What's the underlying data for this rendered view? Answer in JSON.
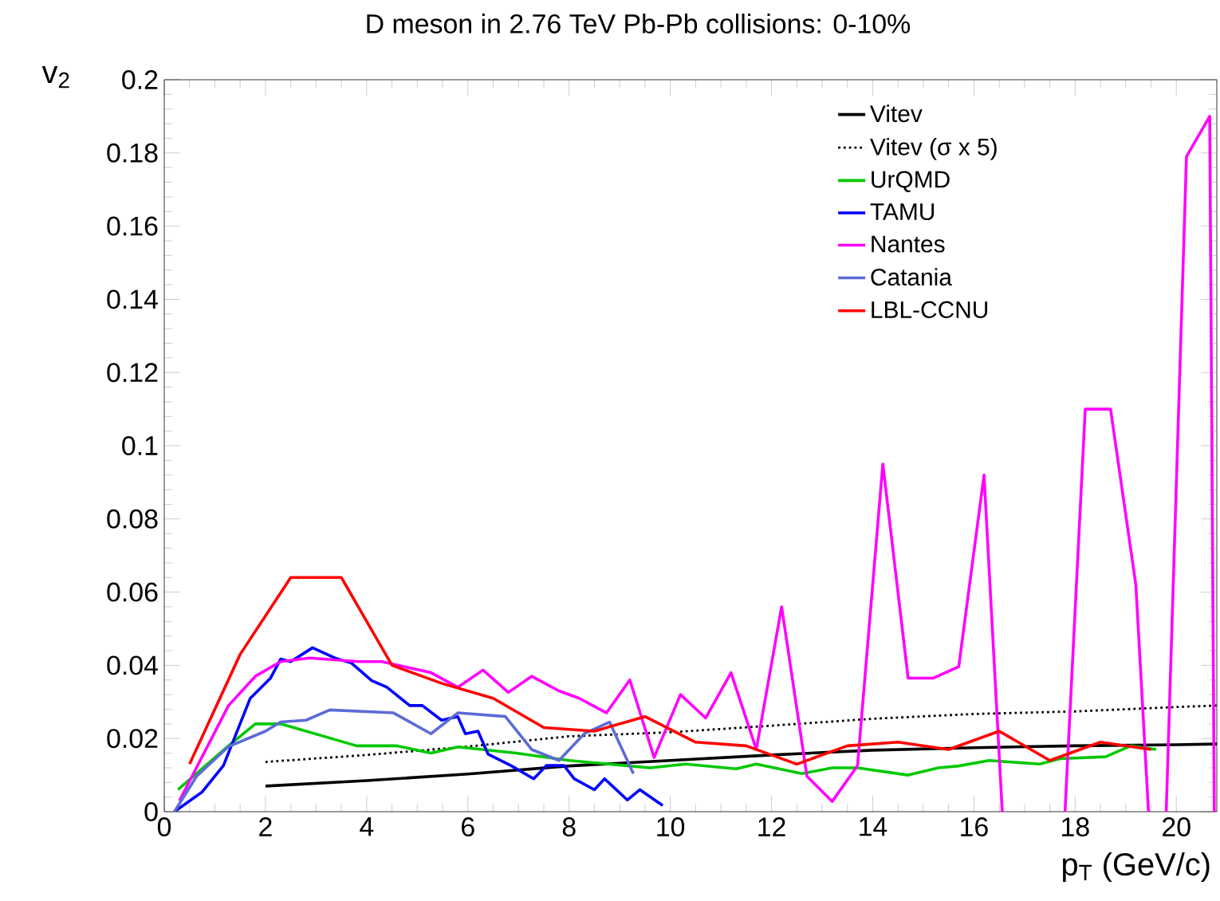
{
  "chart_data": {
    "type": "line",
    "title": "D meson in 2.76 TeV Pb-Pb collisions: 0-10%",
    "xlabel": "p$_{T}$ (GeV/c)",
    "ylabel": "v$_{2}$",
    "xlim": [
      0,
      20.8
    ],
    "ylim": [
      0,
      0.2
    ],
    "xticks": [
      0,
      2,
      4,
      6,
      8,
      10,
      12,
      14,
      16,
      18,
      20
    ],
    "yticks": [
      0,
      0.02,
      0.04,
      0.06,
      0.08,
      0.1,
      0.12,
      0.14,
      0.16,
      0.18,
      0.2
    ],
    "grid": false,
    "legend": "top right",
    "marker": "none",
    "series": [
      {
        "name": "Vitev",
        "color": "#000000",
        "line_style": "solid",
        "x": [
          2,
          4,
          6,
          8,
          10,
          12,
          14,
          16,
          18,
          20,
          20.8
        ],
        "values": [
          0.007,
          0.0085,
          0.0103,
          0.0125,
          0.014,
          0.0155,
          0.0168,
          0.0175,
          0.018,
          0.0183,
          0.0185
        ]
      },
      {
        "name": "Vitev (σ x 5)",
        "color": "#000000",
        "line_style": "dotted",
        "x": [
          2,
          4,
          6,
          8,
          10,
          12,
          14,
          16,
          18,
          20,
          20.8
        ],
        "values": [
          0.0136,
          0.0155,
          0.0178,
          0.0206,
          0.0217,
          0.0235,
          0.0254,
          0.0267,
          0.0274,
          0.0286,
          0.029
        ]
      },
      {
        "name": "UrQMD",
        "color": "#00c800",
        "line_style": "solid",
        "x": [
          0.27,
          1.27,
          1.8,
          2.3,
          3.8,
          4.6,
          5.27,
          5.8,
          6.95,
          8,
          9.6,
          10.3,
          11.3,
          11.7,
          12.6,
          13.2,
          13.7,
          14.7,
          15.3,
          15.7,
          16.3,
          17.3,
          17.7,
          18.6,
          19.1,
          19.6
        ],
        "values": [
          0.006,
          0.018,
          0.024,
          0.024,
          0.018,
          0.018,
          0.016,
          0.0177,
          0.016,
          0.014,
          0.012,
          0.013,
          0.0117,
          0.013,
          0.0104,
          0.012,
          0.012,
          0.01,
          0.012,
          0.0125,
          0.014,
          0.013,
          0.0145,
          0.015,
          0.018,
          0.017
        ]
      },
      {
        "name": "TAMU",
        "color": "#0000ff",
        "line_style": "solid",
        "x": [
          0.2,
          0.75,
          1.17,
          1.7,
          2.1,
          2.3,
          2.5,
          2.93,
          3.37,
          3.7,
          4.1,
          4.4,
          4.85,
          5.1,
          5.48,
          5.8,
          5.95,
          6.2,
          6.4,
          6.85,
          7.3,
          7.55,
          7.9,
          8.1,
          8.5,
          8.7,
          9.15,
          9.4,
          9.85
        ],
        "values": [
          0,
          0.0054,
          0.0126,
          0.031,
          0.0365,
          0.0417,
          0.041,
          0.0448,
          0.042,
          0.0406,
          0.0358,
          0.034,
          0.029,
          0.029,
          0.025,
          0.026,
          0.0213,
          0.022,
          0.0157,
          0.0126,
          0.009,
          0.0126,
          0.0126,
          0.009,
          0.006,
          0.009,
          0.0032,
          0.006,
          0.0017
        ]
      },
      {
        "name": "Nantes",
        "color": "#ff00ff",
        "line_style": "solid",
        "x": [
          0.3,
          1.27,
          1.8,
          2.3,
          2.87,
          3.85,
          4.3,
          5.27,
          5.8,
          6.3,
          6.8,
          7.26,
          7.8,
          8.2,
          8.74,
          9.2,
          9.68,
          10.2,
          10.7,
          11.2,
          11.7,
          12.2,
          12.7,
          13.2,
          13.7,
          14.2,
          14.7,
          15.2,
          15.7,
          16.2,
          16.56,
          17.2,
          17.8,
          18.2,
          18.7,
          19.2,
          19.45,
          19.6,
          19.8,
          20.2,
          20.66,
          20.75
        ],
        "values": [
          0.003,
          0.029,
          0.037,
          0.041,
          0.042,
          0.041,
          0.041,
          0.038,
          0.034,
          0.0387,
          0.0326,
          0.037,
          0.033,
          0.031,
          0.027,
          0.036,
          0.0148,
          0.032,
          0.0256,
          0.038,
          0.017,
          0.056,
          0.0097,
          0.0028,
          0.0126,
          0.095,
          0.0365,
          0.0365,
          0.0396,
          0.092,
          0,
          null,
          0,
          0.11,
          0.11,
          0.062,
          0,
          null,
          0,
          0.179,
          0.19,
          0
        ]
      },
      {
        "name": "Catania",
        "color": "#5c6bd6",
        "line_style": "solid",
        "x": [
          0.2,
          0.64,
          1.27,
          2,
          2.3,
          2.8,
          3.27,
          4.53,
          5.27,
          5.8,
          6.74,
          7.26,
          7.8,
          8.3,
          8.8,
          9.27
        ],
        "values": [
          0,
          0.0097,
          0.0178,
          0.022,
          0.0245,
          0.025,
          0.0278,
          0.027,
          0.0213,
          0.027,
          0.026,
          0.017,
          0.014,
          0.0213,
          0.0245,
          0.0104
        ]
      },
      {
        "name": "LBL-CCNU",
        "color": "#ff0000",
        "line_style": "solid",
        "x": [
          0.5,
          1.5,
          2.5,
          3.5,
          4.5,
          5.5,
          6.5,
          7.5,
          8.5,
          9.5,
          10.5,
          11.5,
          12.5,
          13.5,
          14.5,
          15.5,
          16.5,
          17.5,
          18.5,
          19.5
        ],
        "values": [
          0.013,
          0.043,
          0.064,
          0.064,
          0.04,
          0.035,
          0.031,
          0.023,
          0.022,
          0.026,
          0.019,
          0.018,
          0.013,
          0.018,
          0.019,
          0.017,
          0.022,
          0.014,
          0.019,
          0.017
        ]
      }
    ]
  }
}
